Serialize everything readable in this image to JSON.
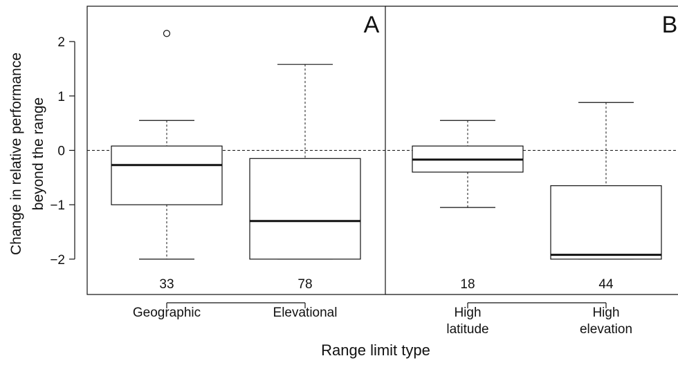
{
  "chart_data": {
    "type": "box",
    "title": "",
    "xlabel": "Range limit type",
    "ylabel_lines": [
      "Change in relative performance",
      "beyond the range"
    ],
    "ylim": [
      -2.65,
      2.65
    ],
    "yticks": [
      {
        "value": -2,
        "label": "−2"
      },
      {
        "value": -1,
        "label": "−1"
      },
      {
        "value": 0,
        "label": "0"
      },
      {
        "value": 1,
        "label": "1"
      },
      {
        "value": 2,
        "label": "2"
      }
    ],
    "reference_line": 0,
    "panels": [
      {
        "label": "A",
        "groups": [
          {
            "name_lines": [
              "Geographic"
            ],
            "n": "33",
            "whisker_low": -2.0,
            "q1": -1.0,
            "median": -0.27,
            "q3": 0.08,
            "whisker_high": 0.55,
            "outliers": [
              2.15
            ]
          },
          {
            "name_lines": [
              "Elevational"
            ],
            "n": "78",
            "whisker_low": -2.0,
            "q1": -2.0,
            "median": -1.3,
            "q3": -0.15,
            "whisker_high": 1.58,
            "outliers": []
          }
        ]
      },
      {
        "label": "B",
        "groups": [
          {
            "name_lines": [
              "High",
              "latitude"
            ],
            "n": "18",
            "whisker_low": -1.05,
            "q1": -0.4,
            "median": -0.17,
            "q3": 0.08,
            "whisker_high": 0.55,
            "outliers": []
          },
          {
            "name_lines": [
              "High",
              "elevation"
            ],
            "n": "44",
            "whisker_low": -2.0,
            "q1": -2.0,
            "median": -1.92,
            "q3": -0.65,
            "whisker_high": 0.88,
            "outliers": []
          }
        ]
      }
    ]
  }
}
